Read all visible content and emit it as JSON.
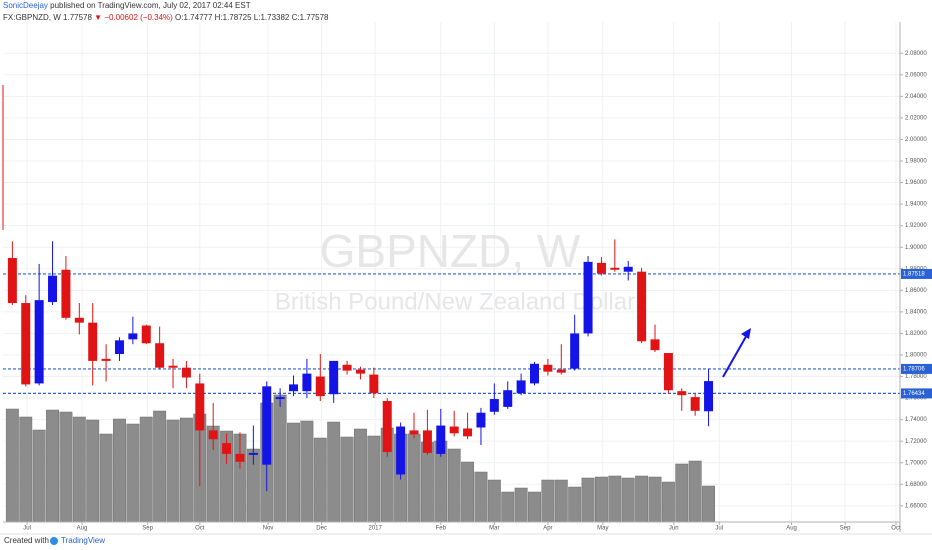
{
  "chart_data": {
    "type": "candlestick",
    "author": "SonicDeejay",
    "published": "published on TradingView.com, July 02, 2017 02:44 EST",
    "symbol": "FX:GBPNZD, W",
    "last": "1.77578",
    "change": "▼ −0.00602 (−0.34%)",
    "ohlc_text": "O:1.74777 H:1.78725 L:1.73382 C:1.77578",
    "watermark_symbol": "GBPNZD, W",
    "watermark_name": "British Pound/New Zealand Dollar",
    "footer_created": "Created with",
    "footer_brand": "TradingView",
    "up_color": "#1414e6",
    "down_color": "#e01414",
    "volume_color": "#8c8c8c",
    "level_color": "#2a62d6",
    "grid": true,
    "open": [
      1.89,
      1.8482,
      1.7736,
      1.8491,
      1.8791,
      1.8345,
      1.83,
      1.7964,
      1.8009,
      1.8145,
      1.8273,
      1.8109,
      1.79,
      1.7882,
      1.7736,
      1.73,
      1.7182,
      1.7082,
      1.7073,
      1.6982,
      1.7591,
      1.7664,
      1.7664,
      1.78,
      1.7636,
      1.7909,
      1.7864,
      1.7818,
      1.7573,
      1.6891,
      1.73,
      1.73,
      1.7082,
      1.7336,
      1.7318,
      1.7327,
      1.7473,
      1.7518,
      1.7645,
      1.7736,
      1.7909,
      1.7864,
      1.7873,
      1.82,
      1.8855,
      1.8809,
      1.8773,
      1.8773,
      1.8145,
      1.8018,
      1.7664,
      1.7609,
      1.74777
    ],
    "high": [
      1.9055,
      1.8555,
      1.8845,
      1.9055,
      1.8918,
      1.8482,
      1.8482,
      1.81,
      1.8164,
      1.8355,
      1.8282,
      1.8264,
      1.7964,
      1.7945,
      1.7827,
      1.7555,
      1.7273,
      1.7282,
      1.7345,
      1.7755,
      1.7691,
      1.7809,
      1.7964,
      1.8009,
      1.7945,
      1.7945,
      1.7891,
      1.7882,
      1.76,
      1.7373,
      1.7464,
      1.7491,
      1.75,
      1.7482,
      1.7464,
      1.7509,
      1.7736,
      1.7755,
      1.7827,
      1.7936,
      1.7964,
      1.81,
      1.8373,
      1.8918,
      1.8909,
      1.9073,
      1.8873,
      1.8809,
      1.8282,
      1.8018,
      1.7691,
      1.7645,
      1.78725
    ],
    "low": [
      1.8464,
      1.7709,
      1.7718,
      1.8464,
      1.8327,
      1.8191,
      1.7718,
      1.7755,
      1.7945,
      1.81,
      1.81,
      1.7864,
      1.7691,
      1.7691,
      1.6782,
      1.7118,
      1.6991,
      1.6945,
      1.6982,
      1.6736,
      1.7518,
      1.7618,
      1.76,
      1.7573,
      1.7555,
      1.7818,
      1.7773,
      1.76,
      1.7055,
      1.6845,
      1.7227,
      1.7073,
      1.7055,
      1.7245,
      1.7218,
      1.7164,
      1.7445,
      1.75,
      1.7627,
      1.7718,
      1.7809,
      1.7818,
      1.7855,
      1.8173,
      1.8736,
      1.8773,
      1.8691,
      1.8109,
      1.8027,
      1.7645,
      1.7482,
      1.7436,
      1.73382
    ],
    "close": [
      1.8482,
      1.7727,
      1.8509,
      1.8736,
      1.8345,
      1.83,
      1.7945,
      1.7945,
      1.8136,
      1.82,
      1.8109,
      1.7882,
      1.7882,
      1.7791,
      1.73,
      1.7218,
      1.7082,
      1.7009,
      1.7091,
      1.7709,
      1.7609,
      1.7727,
      1.7827,
      1.7618,
      1.7945,
      1.7855,
      1.7827,
      1.7645,
      1.71,
      1.7336,
      1.7264,
      1.7091,
      1.7345,
      1.7273,
      1.7245,
      1.7464,
      1.7591,
      1.7673,
      1.7764,
      1.7918,
      1.7845,
      1.7836,
      1.82,
      1.8864,
      1.8755,
      1.8791,
      1.8818,
      1.8127,
      1.8045,
      1.7673,
      1.7627,
      1.7482,
      1.77578
    ],
    "volume": [
      113,
      105,
      92,
      112,
      110,
      105,
      102,
      88,
      103,
      98,
      105,
      111,
      102,
      104,
      108,
      96,
      91,
      88,
      73,
      119,
      127,
      99,
      101,
      84,
      100,
      85,
      93,
      86,
      94,
      88,
      88,
      80,
      81,
      73,
      60,
      50,
      42,
      30,
      34,
      30,
      42,
      42,
      35,
      44,
      45,
      46,
      44,
      46,
      45,
      40,
      58,
      61,
      36
    ],
    "levels": [
      1.87518,
      1.78706,
      1.76434
    ],
    "xlim": [
      -0.7,
      66.3
    ],
    "ylim": [
      1.645,
      2.109
    ],
    "xticks": [
      {
        "value": 1.1,
        "label": "Jul"
      },
      {
        "value": 5.2,
        "label": "Aug"
      },
      {
        "value": 10.1,
        "label": "Sep"
      },
      {
        "value": 14.0,
        "label": "Oct"
      },
      {
        "value": 19.1,
        "label": "Nov"
      },
      {
        "value": 23.1,
        "label": "Dec"
      },
      {
        "value": 27.1,
        "label": "2017"
      },
      {
        "value": 32.0,
        "label": "Feb"
      },
      {
        "value": 36.0,
        "label": "Mar"
      },
      {
        "value": 40.0,
        "label": "Apr"
      },
      {
        "value": 44.1,
        "label": "May"
      },
      {
        "value": 49.4,
        "label": "Jun"
      },
      {
        "value": 52.8,
        "label": "Jul"
      },
      {
        "value": 58.2,
        "label": "Aug"
      },
      {
        "value": 62.2,
        "label": "Sep"
      },
      {
        "value": 66.0,
        "label": "Oct"
      }
    ],
    "yticks": [
      {
        "value": 1.66,
        "label": "1.66000"
      },
      {
        "value": 1.68,
        "label": "1.68000"
      },
      {
        "value": 1.7,
        "label": "1.70000"
      },
      {
        "value": 1.72,
        "label": "1.72000"
      },
      {
        "value": 1.74,
        "label": "1.74000"
      },
      {
        "value": 1.76,
        "label": "1.76000"
      },
      {
        "value": 1.78,
        "label": "1.78000"
      },
      {
        "value": 1.8,
        "label": "1.80000"
      },
      {
        "value": 1.82,
        "label": "1.82000"
      },
      {
        "value": 1.84,
        "label": "1.84000"
      },
      {
        "value": 1.86,
        "label": "1.86000"
      },
      {
        "value": 1.88,
        "label": "1.88000"
      },
      {
        "value": 1.9,
        "label": "1.90000"
      },
      {
        "value": 1.92,
        "label": "1.92000"
      },
      {
        "value": 1.94,
        "label": "1.94000"
      },
      {
        "value": 1.96,
        "label": "1.96000"
      },
      {
        "value": 1.98,
        "label": "1.98000"
      },
      {
        "value": 2.0,
        "label": "2.00000"
      },
      {
        "value": 2.02,
        "label": "2.02000"
      },
      {
        "value": 2.04,
        "label": "2.04000"
      },
      {
        "value": 2.06,
        "label": "2.06000"
      },
      {
        "value": 2.08,
        "label": "2.08000"
      }
    ]
  }
}
